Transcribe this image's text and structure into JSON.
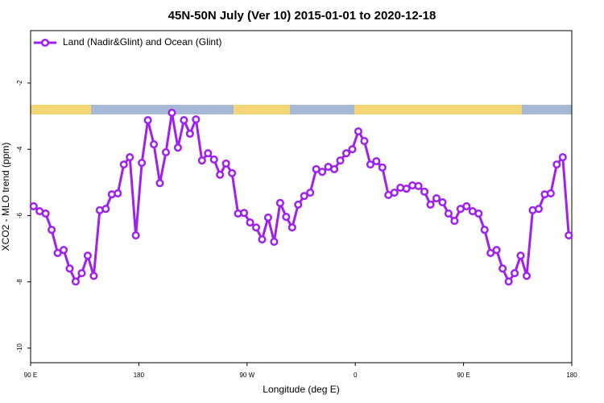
{
  "chart_data": {
    "type": "line",
    "title": "45N-50N July (Ver 10)   2015-01-01 to 2020-12-18",
    "x_label": "Longitude (deg E)",
    "y_label": "XCO2 - MLO trend (ppm)",
    "xlim": [
      90,
      540
    ],
    "ylim": [
      -10.44,
      -0.42
    ],
    "xticks": [
      {
        "value": 90,
        "label": "90 E"
      },
      180,
      {
        "value": 270,
        "label": "90 W"
      },
      {
        "value": 360,
        "label": "0"
      },
      {
        "value": 450,
        "label": "90 E"
      },
      {
        "value": 540,
        "label": "180"
      }
    ],
    "yticks": [
      -2,
      -4,
      -6,
      -8,
      -10
    ],
    "legend": "upper left",
    "x": [
      92.5,
      97.5,
      102.5,
      107.5,
      112.5,
      117.5,
      122.5,
      127.5,
      132.5,
      137.5,
      142.5,
      147.5,
      152.5,
      157.5,
      162.5,
      167.5,
      172.5,
      177.5,
      182.5,
      187.5,
      192.5,
      197.5,
      202.5,
      207.5,
      212.5,
      217.5,
      222.5,
      227.5,
      232.5,
      237.5,
      242.5,
      247.5,
      252.5,
      257.5,
      262.5,
      267.5,
      272.5,
      277.5,
      282.5,
      287.5,
      292.5,
      297.5,
      302.5,
      307.5,
      312.5,
      317.5,
      322.5,
      327.5,
      332.5,
      337.5,
      342.5,
      347.5,
      352.5,
      357.5,
      362.5,
      367.5,
      372.5,
      377.5,
      382.5,
      387.5,
      392.5,
      397.5,
      402.5,
      407.5,
      412.5,
      417.5,
      422.5,
      427.5,
      432.5,
      437.5,
      442.5,
      447.5,
      452.5,
      457.5,
      462.5,
      467.5,
      472.5,
      477.5,
      482.5,
      487.5,
      492.5,
      497.5,
      502.5,
      507.5,
      512.5,
      517.5,
      522.5,
      527.5,
      532.5,
      537.5
    ],
    "series": [
      {
        "name": "Land (Nadir&Glint) and Ocean (Glint)",
        "color": "#a020f0",
        "values": [
          -5.72,
          -5.87,
          -5.94,
          -6.43,
          -7.13,
          -7.04,
          -7.6,
          -7.99,
          -7.74,
          -7.21,
          -7.82,
          -5.84,
          -5.8,
          -5.36,
          -5.33,
          -4.46,
          -4.24,
          -6.6,
          -4.41,
          -3.12,
          -3.85,
          -5.02,
          -4.09,
          -2.9,
          -3.95,
          -3.12,
          -3.53,
          -3.1,
          -4.34,
          -4.12,
          -4.31,
          -4.77,
          -4.43,
          -4.72,
          -5.94,
          -5.92,
          -6.21,
          -6.36,
          -6.72,
          -6.06,
          -6.79,
          -5.62,
          -6.04,
          -6.36,
          -5.67,
          -5.41,
          -5.31,
          -4.6,
          -4.68,
          -4.53,
          -4.6,
          -4.34,
          -4.12,
          -4.0,
          -3.46,
          -3.75,
          -4.46,
          -4.36,
          -4.55,
          -5.38,
          -5.31,
          -5.16,
          -5.19,
          -5.09,
          -5.11,
          -5.28,
          -5.67,
          -5.48,
          -5.6,
          -5.94,
          -6.16,
          -5.8,
          -5.72,
          -5.87,
          -5.94,
          -6.43,
          -7.13,
          -7.04,
          -7.6,
          -7.99,
          -7.74,
          -7.21,
          -7.82,
          -5.84,
          -5.8,
          -5.36,
          -5.33,
          -4.46,
          -4.24,
          -6.6
        ]
      }
    ]
  }
}
